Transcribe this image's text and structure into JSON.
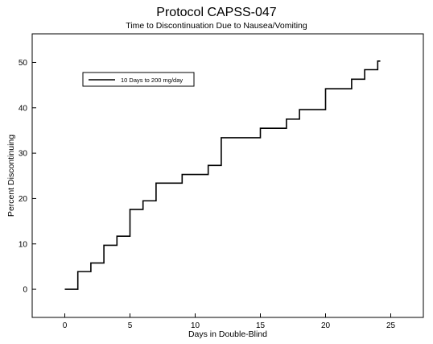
{
  "chart_data": {
    "type": "line",
    "step": true,
    "title": "Protocol CAPSS-047",
    "subtitle": "Time to Discontinuation Due to Nausea/Vomiting",
    "xlabel": "Days in Double-Blind",
    "ylabel": "Percent Discontinuing",
    "xlim": [
      -2.5,
      27.5
    ],
    "ylim": [
      -6.2,
      56.3
    ],
    "xticks": [
      0,
      5,
      10,
      15,
      20,
      25
    ],
    "yticks": [
      0,
      10,
      20,
      30,
      40,
      50
    ],
    "grid": false,
    "legend_position": "top-left",
    "series": [
      {
        "name": "10 Days to 200 mg/day",
        "color": "#000000",
        "x": [
          0,
          1,
          2,
          3,
          4,
          5,
          6,
          7,
          9,
          11,
          12,
          15,
          17,
          18,
          20,
          22,
          23,
          24,
          24.2
        ],
        "y": [
          0,
          3.9,
          5.8,
          9.7,
          11.7,
          17.6,
          19.5,
          23.4,
          25.3,
          27.3,
          33.4,
          35.5,
          37.5,
          39.6,
          44.2,
          46.3,
          48.4,
          50.3,
          50.3
        ]
      }
    ]
  }
}
